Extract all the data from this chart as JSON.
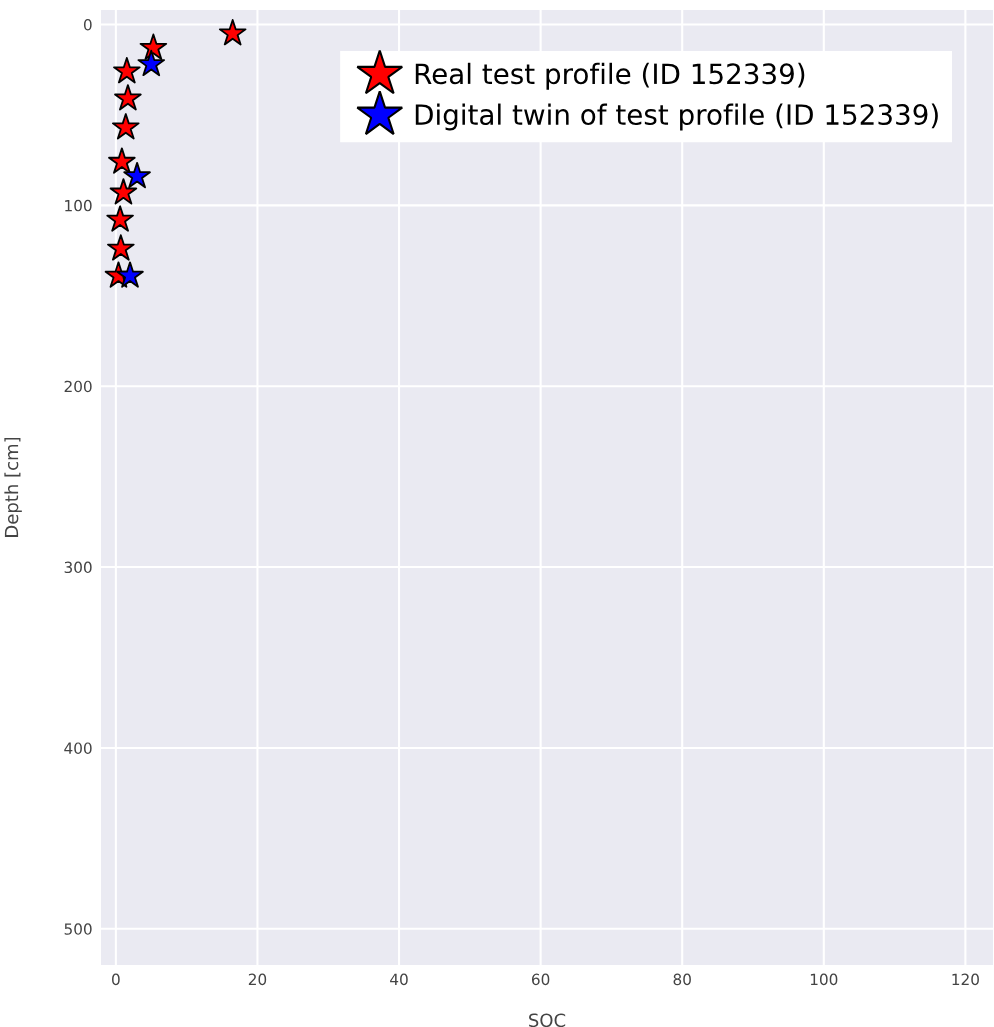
{
  "chart_data": {
    "type": "scatter",
    "xlabel": "SOC",
    "ylabel": "Depth [cm]",
    "marker": "star",
    "grid": true,
    "legend": "top right",
    "xlim": [
      -2.1,
      123.9
    ],
    "xticks": [
      0,
      20,
      40,
      60,
      80,
      100,
      120
    ],
    "ylim": [
      520,
      -8
    ],
    "yticks": [
      0,
      100,
      200,
      300,
      400,
      500
    ],
    "series": [
      {
        "name": "Real test profile (ID 152339)",
        "color": "#ff0000",
        "x": [
          16.5,
          5.3,
          1.55,
          1.7,
          1.4,
          0.85,
          1.07,
          0.6,
          0.7,
          0.37
        ],
        "values": [
          5,
          13,
          26,
          41,
          57,
          76,
          93,
          108,
          124,
          139
        ]
      },
      {
        "name": "Digital twin of test profile (ID 152339)",
        "color": "#0000ff",
        "x": [
          5.0,
          3.0,
          2.0
        ],
        "values": [
          22,
          84,
          139
        ]
      }
    ]
  }
}
